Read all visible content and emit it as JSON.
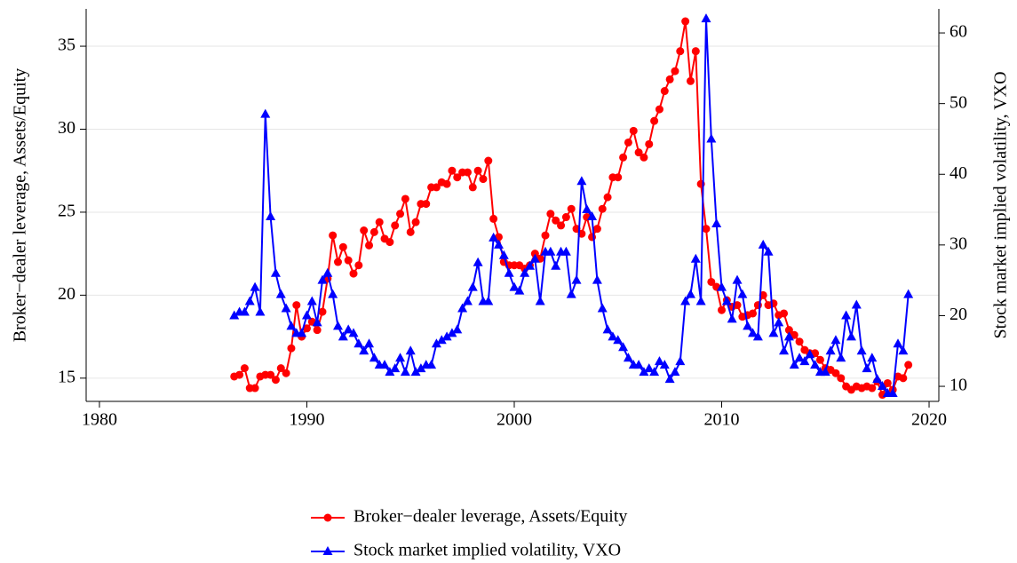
{
  "chart_data": {
    "type": "line",
    "y_label": "Broker−dealer leverage, Assets/Equity",
    "y2_label": "Stock market implied volatility, VXO",
    "x": [
      1986.5,
      1986.75,
      1987,
      1987.25,
      1987.5,
      1987.75,
      1988,
      1988.25,
      1988.5,
      1988.75,
      1989,
      1989.25,
      1989.5,
      1989.75,
      1990,
      1990.25,
      1990.5,
      1990.75,
      1991,
      1991.25,
      1991.5,
      1991.75,
      1992,
      1992.25,
      1992.5,
      1992.75,
      1993,
      1993.25,
      1993.5,
      1993.75,
      1994,
      1994.25,
      1994.5,
      1994.75,
      1995,
      1995.25,
      1995.5,
      1995.75,
      1996,
      1996.25,
      1996.5,
      1996.75,
      1997,
      1997.25,
      1997.5,
      1997.75,
      1998,
      1998.25,
      1998.5,
      1998.75,
      1999,
      1999.25,
      1999.5,
      1999.75,
      2000,
      2000.25,
      2000.5,
      2000.75,
      2001,
      2001.25,
      2001.5,
      2001.75,
      2002,
      2002.25,
      2002.5,
      2002.75,
      2003,
      2003.25,
      2003.5,
      2003.75,
      2004,
      2004.25,
      2004.5,
      2004.75,
      2005,
      2005.25,
      2005.5,
      2005.75,
      2006,
      2006.25,
      2006.5,
      2006.75,
      2007,
      2007.25,
      2007.5,
      2007.75,
      2008,
      2008.25,
      2008.5,
      2008.75,
      2009,
      2009.25,
      2009.5,
      2009.75,
      2010,
      2010.25,
      2010.5,
      2010.75,
      2011,
      2011.25,
      2011.5,
      2011.75,
      2012,
      2012.25,
      2012.5,
      2012.75,
      2013,
      2013.25,
      2013.5,
      2013.75,
      2014,
      2014.25,
      2014.5,
      2014.75,
      2015,
      2015.25,
      2015.5,
      2015.75,
      2016,
      2016.25,
      2016.5,
      2016.75,
      2017,
      2017.25,
      2017.5,
      2017.75,
      2018,
      2018.25,
      2018.5,
      2018.75,
      2019
    ],
    "series": [
      {
        "name": "Broker−dealer leverage, Assets/Equity",
        "color": "#ff0000",
        "marker": "circle",
        "values": [
          15.1,
          15.2,
          15.6,
          14.4,
          14.4,
          15.1,
          15.2,
          15.2,
          14.9,
          15.6,
          15.3,
          16.8,
          19.4,
          17.5,
          18.0,
          18.4,
          17.9,
          19.0,
          21.0,
          23.6,
          22.0,
          22.9,
          22.1,
          21.3,
          21.8,
          23.9,
          23.0,
          23.8,
          24.4,
          23.4,
          23.2,
          24.2,
          24.9,
          25.8,
          23.8,
          24.4,
          25.5,
          25.5,
          26.5,
          26.5,
          26.8,
          26.7,
          27.5,
          27.1,
          27.4,
          27.4,
          26.5,
          27.5,
          27.0,
          28.1,
          24.6,
          23.5,
          22.0,
          21.8,
          21.8,
          21.8,
          21.6,
          21.8,
          22.5,
          22.2,
          23.6,
          24.9,
          24.5,
          24.2,
          24.7,
          25.2,
          24.0,
          23.7,
          24.7,
          23.5,
          24.0,
          25.2,
          25.9,
          27.1,
          27.1,
          28.3,
          29.2,
          29.9,
          28.6,
          28.3,
          29.1,
          30.5,
          31.2,
          32.3,
          33.0,
          33.5,
          34.7,
          36.5,
          32.9,
          34.7,
          26.7,
          24.0,
          20.8,
          20.5,
          19.1,
          19.7,
          19.3,
          19.4,
          18.7,
          18.8,
          18.9,
          19.4,
          20.0,
          19.4,
          19.5,
          18.8,
          18.9,
          17.9,
          17.6,
          17.2,
          16.7,
          16.5,
          16.5,
          16.1,
          15.6,
          15.5,
          15.3,
          15.0,
          14.5,
          14.3,
          14.5,
          14.4,
          14.5,
          14.4,
          14.8,
          14.0,
          14.7,
          14.3,
          15.1,
          15.0,
          15.8
        ]
      },
      {
        "name": "Stock market implied volatility, VXO",
        "color": "#0000ff",
        "marker": "triangle",
        "axis": "y2",
        "values": [
          20,
          20.5,
          20.5,
          22,
          24,
          20.5,
          48.5,
          34,
          26,
          23,
          21,
          18.5,
          17.5,
          17.5,
          20,
          22,
          19,
          25,
          26,
          23,
          18.5,
          17,
          18,
          17.5,
          16,
          15,
          16,
          14,
          13,
          13,
          12,
          12.5,
          14,
          12,
          15,
          12,
          12.5,
          13,
          13,
          16,
          16.5,
          17,
          17.5,
          18,
          21,
          22,
          24,
          27.5,
          22,
          22,
          31,
          30,
          28.5,
          26,
          24,
          23.5,
          26,
          27,
          28,
          22,
          29,
          29,
          27,
          29,
          29,
          23,
          25,
          39,
          35,
          34,
          25,
          21,
          18,
          17,
          16.5,
          15.5,
          14,
          13,
          13,
          12,
          12.5,
          12,
          13.5,
          13,
          11,
          12,
          13.5,
          22,
          23,
          28,
          22,
          62,
          45,
          33,
          24,
          22,
          19.5,
          25,
          23,
          18.5,
          17.5,
          17,
          30,
          29,
          17.5,
          19,
          15,
          17,
          13,
          14,
          13.5,
          14.5,
          13,
          12,
          12,
          15,
          16.5,
          14,
          20,
          17,
          21.5,
          15,
          12.5,
          14,
          11,
          10,
          9,
          9,
          16,
          15,
          23
        ]
      }
    ],
    "xlim": [
      1979.36,
      2020.47
    ],
    "xticks": [
      1980,
      1990,
      2000,
      2010,
      2020
    ],
    "ylim": [
      13.6,
      37.25
    ],
    "yticks": [
      15,
      20,
      25,
      30,
      35
    ],
    "y2lim": [
      7.87,
      63.4
    ],
    "y2ticks": [
      10,
      20,
      30,
      40,
      50,
      60
    ],
    "grid": true,
    "legend": "bottom"
  }
}
